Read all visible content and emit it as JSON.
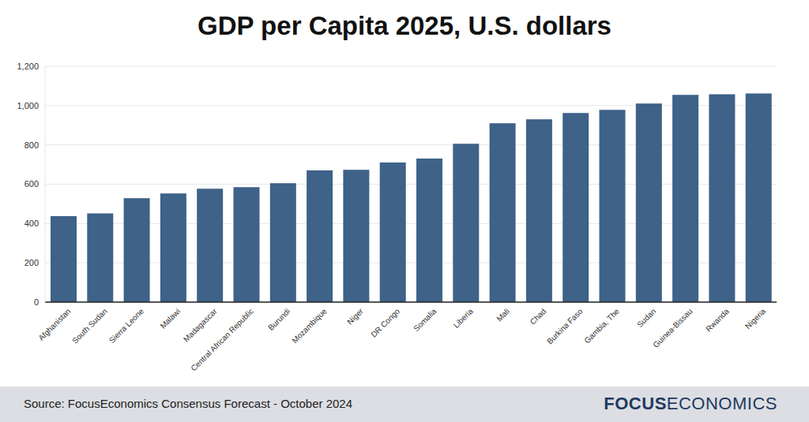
{
  "chart_data": {
    "type": "bar",
    "title": "GDP per Capita 2025, U.S. dollars",
    "source": "Source: FocusEconomics Consensus Forecast - October 2024",
    "logo": [
      "FOCUS",
      "ECONOMICS"
    ],
    "categories": [
      "Afghanistan",
      "South Sudan",
      "Sierra Leone",
      "Malawi",
      "Madagascar",
      "Central African Republic",
      "Burundi",
      "Mozambique",
      "Niger",
      "DR Congo",
      "Somalia",
      "Liberia",
      "Mali",
      "Chad",
      "Burkina Faso",
      "Gambia, The",
      "Sudan",
      "Guinea-Bissau",
      "Rwanda",
      "Nigeria"
    ],
    "values": [
      437,
      452,
      529,
      553,
      577,
      585,
      605,
      670,
      673,
      710,
      730,
      806,
      910,
      930,
      962,
      978,
      1010,
      1055,
      1058,
      1062
    ],
    "color": "#3e6288",
    "ylim": [
      0,
      1200
    ],
    "yticks": [
      0,
      200,
      400,
      600,
      800,
      {
        "value": 1000,
        "label": "1,000"
      },
      {
        "value": 1200,
        "label": "1,200"
      }
    ],
    "grid": true
  }
}
